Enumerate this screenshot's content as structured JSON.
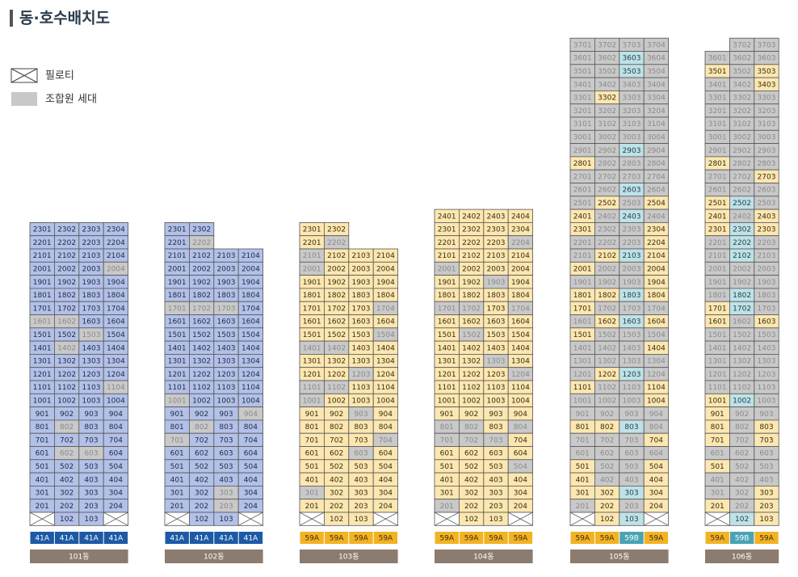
{
  "header": {
    "title": "동·호수배치도"
  },
  "legend": [
    {
      "label": "필로티"
    },
    {
      "label": "조합원 세대"
    }
  ],
  "buildings": [
    {
      "name": "101동",
      "types": [
        "41A",
        "41A",
        "41A",
        "41A"
      ],
      "type_codes": "dddd",
      "rows": [
        [
          "2301",
          "2302",
          "2303",
          "2304"
        ],
        [
          "2201",
          "2202",
          "2203",
          "2204"
        ],
        [
          "2101",
          "2102",
          "2103",
          "2104"
        ],
        [
          "2001",
          "2002",
          "2003",
          "2004"
        ],
        [
          "1901",
          "1902",
          "1903",
          "1904"
        ],
        [
          "1801",
          "1802",
          "1803",
          "1804"
        ],
        [
          "1701",
          "1702",
          "1703",
          "1704"
        ],
        [
          "1601",
          "1602",
          "1603",
          "1604"
        ],
        [
          "1501",
          "1502",
          "1503",
          "1504"
        ],
        [
          "1401",
          "1402",
          "1403",
          "1404"
        ],
        [
          "1301",
          "1302",
          "1303",
          "1304"
        ],
        [
          "1201",
          "1202",
          "1203",
          "1204"
        ],
        [
          "1101",
          "1102",
          "1103",
          "1104"
        ],
        [
          "1001",
          "1002",
          "1003",
          "1004"
        ],
        [
          "901",
          "902",
          "903",
          "904"
        ],
        [
          "801",
          "802",
          "803",
          "804"
        ],
        [
          "701",
          "702",
          "703",
          "704"
        ],
        [
          "601",
          "602",
          "603",
          "604"
        ],
        [
          "501",
          "502",
          "503",
          "504"
        ],
        [
          "401",
          "402",
          "403",
          "404"
        ],
        [
          "301",
          "302",
          "303",
          "304"
        ],
        [
          "201",
          "202",
          "203",
          "204"
        ],
        [
          null,
          "102",
          "103",
          null
        ]
      ],
      "status": [
        "bbbb",
        "bbbb",
        "bbbb",
        "bbbg",
        "bbbb",
        "bbbb",
        "bbbb",
        "ggbb",
        "bbgb",
        "bgbb",
        "bbbb",
        "bbbb",
        "bbbg",
        "bbbb",
        "bbbb",
        "bgbb",
        "bbbb",
        "bggb",
        "bbbb",
        "bbbb",
        "bbbb",
        "bbbb",
        "xbbx"
      ]
    },
    {
      "name": "102동",
      "types": [
        "41A",
        "41A",
        "41A",
        "41A"
      ],
      "type_codes": "dddd",
      "rows": [
        [
          "2301",
          "2302",
          null,
          null
        ],
        [
          "2201",
          "2202",
          null,
          null
        ],
        [
          "2101",
          "2102",
          "2103",
          "2104"
        ],
        [
          "2001",
          "2002",
          "2003",
          "2004"
        ],
        [
          "1901",
          "1902",
          "1903",
          "1904"
        ],
        [
          "1801",
          "1802",
          "1803",
          "1804"
        ],
        [
          "1701",
          "1702",
          "1703",
          "1704"
        ],
        [
          "1601",
          "1602",
          "1603",
          "1604"
        ],
        [
          "1501",
          "1502",
          "1503",
          "1504"
        ],
        [
          "1401",
          "1402",
          "1403",
          "1404"
        ],
        [
          "1301",
          "1302",
          "1303",
          "1304"
        ],
        [
          "1201",
          "1202",
          "1203",
          "1204"
        ],
        [
          "1101",
          "1102",
          "1103",
          "1104"
        ],
        [
          "1001",
          "1002",
          "1003",
          "1004"
        ],
        [
          "901",
          "902",
          "903",
          "904"
        ],
        [
          "801",
          "802",
          "803",
          "804"
        ],
        [
          "701",
          "702",
          "703",
          "704"
        ],
        [
          "601",
          "602",
          "603",
          "604"
        ],
        [
          "501",
          "502",
          "503",
          "504"
        ],
        [
          "401",
          "402",
          "403",
          "404"
        ],
        [
          "301",
          "302",
          "303",
          "304"
        ],
        [
          "201",
          "202",
          "203",
          "204"
        ],
        [
          null,
          "102",
          "103",
          null
        ]
      ],
      "status": [
        "bb--",
        "bg--",
        "bbbb",
        "bbbb",
        "bbbb",
        "bbbb",
        "gggb",
        "bbbb",
        "bbbb",
        "bbbb",
        "bbbb",
        "bbbb",
        "bbbb",
        "gbbb",
        "bbbg",
        "bgbb",
        "gbbb",
        "bbbb",
        "bbbb",
        "bbbb",
        "bbgb",
        "bbgb",
        "xbbx"
      ]
    },
    {
      "name": "103동",
      "types": [
        "59A",
        "59A",
        "59A",
        "59A"
      ],
      "type_codes": "aaaa",
      "rows": [
        [
          "2301",
          "2302",
          null,
          null
        ],
        [
          "2201",
          "2202",
          null,
          null
        ],
        [
          "2101",
          "2102",
          "2103",
          "2104"
        ],
        [
          "2001",
          "2002",
          "2003",
          "2004"
        ],
        [
          "1901",
          "1902",
          "1903",
          "1904"
        ],
        [
          "1801",
          "1802",
          "1803",
          "1804"
        ],
        [
          "1701",
          "1702",
          "1703",
          "1704"
        ],
        [
          "1601",
          "1602",
          "1603",
          "1604"
        ],
        [
          "1501",
          "1502",
          "1503",
          "1504"
        ],
        [
          "1401",
          "1402",
          "1403",
          "1404"
        ],
        [
          "1301",
          "1302",
          "1303",
          "1304"
        ],
        [
          "1201",
          "1202",
          "1203",
          "1204"
        ],
        [
          "1101",
          "1102",
          "1103",
          "1104"
        ],
        [
          "1001",
          "1002",
          "1003",
          "1004"
        ],
        [
          "901",
          "902",
          "903",
          "904"
        ],
        [
          "801",
          "802",
          "803",
          "804"
        ],
        [
          "701",
          "702",
          "703",
          "704"
        ],
        [
          "601",
          "602",
          "603",
          "604"
        ],
        [
          "501",
          "502",
          "503",
          "504"
        ],
        [
          "401",
          "402",
          "403",
          "404"
        ],
        [
          "301",
          "302",
          "303",
          "304"
        ],
        [
          "201",
          "202",
          "203",
          "204"
        ],
        [
          null,
          "102",
          "103",
          null
        ]
      ],
      "status": [
        "yy--",
        "yg--",
        "gyyy",
        "gyyy",
        "yyyy",
        "yyyy",
        "yyyg",
        "yyyy",
        "yyyg",
        "ggyy",
        "yyyy",
        "yygy",
        "ggyy",
        "gyyy",
        "yygy",
        "yyyy",
        "yyyg",
        "yygy",
        "yyyy",
        "yyyy",
        "gyyy",
        "yyyy",
        "xyyx"
      ]
    },
    {
      "name": "104동",
      "types": [
        "59A",
        "59A",
        "59A",
        "59A"
      ],
      "type_codes": "aaaa",
      "rows": [
        [
          "2401",
          "2402",
          "2403",
          "2404"
        ],
        [
          "2301",
          "2302",
          "2303",
          "2304"
        ],
        [
          "2201",
          "2202",
          "2203",
          "2204"
        ],
        [
          "2101",
          "2102",
          "2103",
          "2104"
        ],
        [
          "2001",
          "2002",
          "2003",
          "2004"
        ],
        [
          "1901",
          "1902",
          "1903",
          "1904"
        ],
        [
          "1801",
          "1802",
          "1803",
          "1804"
        ],
        [
          "1701",
          "1702",
          "1703",
          "1704"
        ],
        [
          "1601",
          "1602",
          "1603",
          "1604"
        ],
        [
          "1501",
          "1502",
          "1503",
          "1504"
        ],
        [
          "1401",
          "1402",
          "1403",
          "1404"
        ],
        [
          "1301",
          "1302",
          "1303",
          "1304"
        ],
        [
          "1201",
          "1202",
          "1203",
          "1204"
        ],
        [
          "1101",
          "1102",
          "1103",
          "1104"
        ],
        [
          "1001",
          "1002",
          "1003",
          "1004"
        ],
        [
          "901",
          "902",
          "903",
          "904"
        ],
        [
          "801",
          "802",
          "803",
          "804"
        ],
        [
          "701",
          "702",
          "703",
          "704"
        ],
        [
          "601",
          "602",
          "603",
          "604"
        ],
        [
          "501",
          "502",
          "503",
          "504"
        ],
        [
          "401",
          "402",
          "403",
          "404"
        ],
        [
          "301",
          "302",
          "303",
          "304"
        ],
        [
          "201",
          "202",
          "203",
          "204"
        ],
        [
          null,
          "102",
          "103",
          null
        ]
      ],
      "status": [
        "yyyy",
        "yyyy",
        "yyyg",
        "yyyy",
        "gyyy",
        "yygy",
        "yyyy",
        "ggyg",
        "yyyy",
        "ygyy",
        "yyyy",
        "yygy",
        "yyyg",
        "yyyy",
        "yyyy",
        "yyyy",
        "ggyg",
        "gggy",
        "yyyy",
        "yyyg",
        "yyyy",
        "yyyy",
        "gyyy",
        "xyyx"
      ]
    },
    {
      "name": "105동",
      "types": [
        "59A",
        "59A",
        "59B",
        "59A"
      ],
      "type_codes": "aaca",
      "rows": [
        [
          "3701",
          "3702",
          "3703",
          "3704"
        ],
        [
          "3601",
          "3602",
          "3603",
          "3604"
        ],
        [
          "3501",
          "3502",
          "3503",
          "3504"
        ],
        [
          "3401",
          "3402",
          "3403",
          "3404"
        ],
        [
          "3301",
          "3302",
          "3303",
          "3304"
        ],
        [
          "3201",
          "3202",
          "3203",
          "3204"
        ],
        [
          "3101",
          "3102",
          "3103",
          "3104"
        ],
        [
          "3001",
          "3002",
          "3003",
          "3004"
        ],
        [
          "2901",
          "2902",
          "2903",
          "2904"
        ],
        [
          "2801",
          "2802",
          "2803",
          "2804"
        ],
        [
          "2701",
          "2702",
          "2703",
          "2704"
        ],
        [
          "2601",
          "2602",
          "2603",
          "2604"
        ],
        [
          "2501",
          "2502",
          "2503",
          "2504"
        ],
        [
          "2401",
          "2402",
          "2403",
          "2404"
        ],
        [
          "2301",
          "2302",
          "2303",
          "2304"
        ],
        [
          "2201",
          "2202",
          "2203",
          "2204"
        ],
        [
          "2101",
          "2102",
          "2103",
          "2104"
        ],
        [
          "2001",
          "2002",
          "2003",
          "2004"
        ],
        [
          "1901",
          "1902",
          "1903",
          "1904"
        ],
        [
          "1801",
          "1802",
          "1803",
          "1804"
        ],
        [
          "1701",
          "1702",
          "1703",
          "1704"
        ],
        [
          "1601",
          "1602",
          "1603",
          "1604"
        ],
        [
          "1501",
          "1502",
          "1503",
          "1504"
        ],
        [
          "1401",
          "1402",
          "1403",
          "1404"
        ],
        [
          "1301",
          "1302",
          "1303",
          "1304"
        ],
        [
          "1201",
          "1202",
          "1203",
          "1204"
        ],
        [
          "1101",
          "1102",
          "1103",
          "1104"
        ],
        [
          "1001",
          "1002",
          "1003",
          "1004"
        ],
        [
          "901",
          "902",
          "903",
          "904"
        ],
        [
          "801",
          "802",
          "803",
          "804"
        ],
        [
          "701",
          "702",
          "703",
          "704"
        ],
        [
          "601",
          "602",
          "603",
          "604"
        ],
        [
          "501",
          "502",
          "503",
          "504"
        ],
        [
          "401",
          "402",
          "403",
          "404"
        ],
        [
          "301",
          "302",
          "303",
          "304"
        ],
        [
          "201",
          "202",
          "203",
          "204"
        ],
        [
          null,
          "102",
          "103",
          null
        ]
      ],
      "status": [
        "gggg",
        "ggcg",
        "ggcg",
        "gggg",
        "gygg",
        "gggg",
        "gggg",
        "gggg",
        "ggcg",
        "yggg",
        "gggg",
        "ggcg",
        "gygy",
        "ygcg",
        "yggy",
        "gggy",
        "gycy",
        "yggy",
        "gggy",
        "yycy",
        "yggg",
        "gycy",
        "yggg",
        "gggy",
        "gggg",
        "gycg",
        "yggy",
        "gggy",
        "gggg",
        "yycg",
        "gggy",
        "gggg",
        "yggy",
        "yggy",
        "yycy",
        "gygy",
        "xycx"
      ]
    },
    {
      "name": "106동",
      "types": [
        "59A",
        "59B",
        "59A"
      ],
      "type_codes": "aca",
      "rows": [
        [
          null,
          "3702",
          "3703"
        ],
        [
          "3601",
          "3602",
          "3603"
        ],
        [
          "3501",
          "3502",
          "3503"
        ],
        [
          "3401",
          "3402",
          "3403"
        ],
        [
          "3301",
          "3302",
          "3303"
        ],
        [
          "3201",
          "3202",
          "3203"
        ],
        [
          "3101",
          "3102",
          "3103"
        ],
        [
          "3001",
          "3002",
          "3003"
        ],
        [
          "2901",
          "2902",
          "2903"
        ],
        [
          "2801",
          "2802",
          "2803"
        ],
        [
          "2701",
          "2702",
          "2703"
        ],
        [
          "2601",
          "2602",
          "2603"
        ],
        [
          "2501",
          "2502",
          "2503"
        ],
        [
          "2401",
          "2402",
          "2403"
        ],
        [
          "2301",
          "2302",
          "2303"
        ],
        [
          "2201",
          "2202",
          "2203"
        ],
        [
          "2101",
          "2102",
          "2103"
        ],
        [
          "2001",
          "2002",
          "2003"
        ],
        [
          "1901",
          "1902",
          "1903"
        ],
        [
          "1801",
          "1802",
          "1803"
        ],
        [
          "1701",
          "1702",
          "1703"
        ],
        [
          "1601",
          "1602",
          "1603"
        ],
        [
          "1501",
          "1502",
          "1503"
        ],
        [
          "1401",
          "1402",
          "1403"
        ],
        [
          "1301",
          "1302",
          "1303"
        ],
        [
          "1201",
          "1202",
          "1203"
        ],
        [
          "1101",
          "1102",
          "1103"
        ],
        [
          "1001",
          "1002",
          "1003"
        ],
        [
          "901",
          "902",
          "903"
        ],
        [
          "801",
          "802",
          "803"
        ],
        [
          "701",
          "702",
          "703"
        ],
        [
          "601",
          "602",
          "603"
        ],
        [
          "501",
          "502",
          "503"
        ],
        [
          "401",
          "402",
          "403"
        ],
        [
          "301",
          "302",
          "303"
        ],
        [
          "201",
          "202",
          "203"
        ],
        [
          null,
          "102",
          "103"
        ]
      ],
      "status": [
        "-gg",
        "ggg",
        "ygy",
        "ggy",
        "ggg",
        "ggg",
        "ggg",
        "ggg",
        "ggg",
        "ygg",
        "ggy",
        "ggg",
        "ycg",
        "ygy",
        "ycy",
        "gcg",
        "gcg",
        "ggg",
        "ggg",
        "gcg",
        "ycg",
        "ygy",
        "ggg",
        "ggg",
        "ggg",
        "ggg",
        "ggg",
        "ycg",
        "ygg",
        "ygy",
        "ygy",
        "ggg",
        "ygg",
        "ggg",
        "ggy",
        "ygy",
        "xcy"
      ]
    }
  ]
}
